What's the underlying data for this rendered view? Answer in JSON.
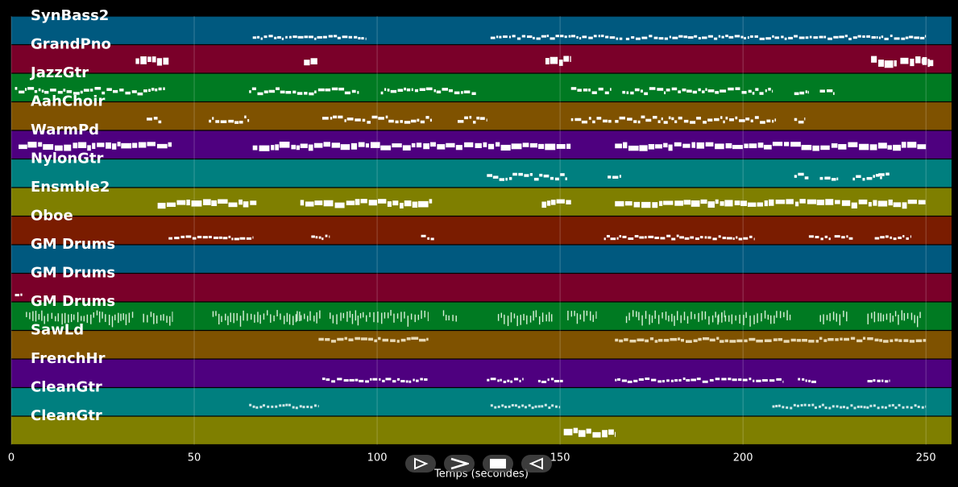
{
  "chart_data": {
    "type": "piano-roll",
    "xlabel": "Temps (secondes)",
    "xlim": [
      0,
      257
    ],
    "xticks": [
      0,
      50,
      100,
      150,
      200,
      250
    ],
    "grid": true,
    "tracks": [
      {
        "name": "SynBass2",
        "color": "#00597f",
        "notes": [
          [
            66,
            31
          ],
          [
            131,
            36
          ],
          [
            168,
            82
          ]
        ],
        "style": "thin"
      },
      {
        "name": "GrandPno",
        "color": "#7a0029",
        "notes": [
          [
            34,
            9
          ],
          [
            80,
            4
          ],
          [
            146,
            7
          ],
          [
            235,
            7
          ],
          [
            243,
            8
          ],
          [
            249,
            3
          ]
        ],
        "style": "block"
      },
      {
        "name": "JazzGtr",
        "color": "#007a22",
        "notes": [
          [
            1,
            41
          ],
          [
            65,
            30
          ],
          [
            101,
            26
          ],
          [
            153,
            11
          ],
          [
            167,
            41
          ],
          [
            214,
            4
          ],
          [
            221,
            4
          ]
        ],
        "style": "dash"
      },
      {
        "name": "AahChoir",
        "color": "#7f5200",
        "notes": [
          [
            37,
            4
          ],
          [
            54,
            11
          ],
          [
            85,
            30
          ],
          [
            122,
            8
          ],
          [
            153,
            11
          ],
          [
            165,
            44
          ],
          [
            214,
            3
          ]
        ],
        "style": "dash"
      },
      {
        "name": "WarmPd",
        "color": "#4e007f",
        "notes": [
          [
            2,
            42
          ],
          [
            66,
            87
          ],
          [
            165,
            85
          ]
        ],
        "style": "thick"
      },
      {
        "name": "NylonGtr",
        "color": "#007f7f",
        "notes": [
          [
            130,
            22
          ],
          [
            163,
            4
          ],
          [
            214,
            4
          ],
          [
            221,
            5
          ],
          [
            230,
            8
          ],
          [
            237,
            3
          ]
        ],
        "style": "dash"
      },
      {
        "name": "Ensmble2",
        "color": "#7f7f00",
        "notes": [
          [
            40,
            27
          ],
          [
            79,
            36
          ],
          [
            145,
            8
          ],
          [
            165,
            85
          ]
        ],
        "style": "thick"
      },
      {
        "name": "Oboe",
        "color": "#7a1c00",
        "notes": [
          [
            43,
            23
          ],
          [
            82,
            5
          ],
          [
            112,
            4
          ],
          [
            162,
            41
          ],
          [
            218,
            6
          ],
          [
            225,
            5
          ],
          [
            236,
            10
          ]
        ],
        "style": "thin"
      },
      {
        "name": "GM Drums",
        "color": "#00597f",
        "notes": [],
        "style": "thin"
      },
      {
        "name": "GM Drums",
        "color": "#7a0029",
        "notes": [
          [
            1,
            2
          ]
        ],
        "style": "thin"
      },
      {
        "name": "GM Drums",
        "color": "#007a22",
        "notes": [
          [
            4,
            30
          ],
          [
            36,
            8
          ],
          [
            55,
            24
          ],
          [
            78,
            7
          ],
          [
            87,
            27
          ],
          [
            118,
            4
          ],
          [
            133,
            15
          ],
          [
            152,
            8
          ],
          [
            168,
            27
          ],
          [
            193,
            20
          ],
          [
            221,
            8
          ],
          [
            234,
            15
          ]
        ],
        "style": "drum"
      },
      {
        "name": "SawLd",
        "color": "#7f5200",
        "notes": [
          [
            84,
            30
          ],
          [
            165,
            85
          ]
        ],
        "style": "beige"
      },
      {
        "name": "FrenchHr",
        "color": "#4e007f",
        "notes": [
          [
            85,
            29
          ],
          [
            130,
            10
          ],
          [
            144,
            7
          ],
          [
            165,
            46
          ],
          [
            215,
            5
          ],
          [
            234,
            6
          ]
        ],
        "style": "thin"
      },
      {
        "name": "CleanGtr",
        "color": "#007f7f",
        "notes": [
          [
            65,
            19
          ],
          [
            131,
            19
          ],
          [
            208,
            42
          ]
        ],
        "style": "dots"
      },
      {
        "name": "CleanGtr",
        "color": "#7f7f00",
        "notes": [
          [
            151,
            14
          ]
        ],
        "style": "block"
      }
    ]
  },
  "controls": {
    "items": [
      {
        "name": "play-icon",
        "label": "play"
      },
      {
        "name": "forward-icon",
        "label": "forward"
      },
      {
        "name": "stop-icon",
        "label": "stop"
      },
      {
        "name": "rewind-icon",
        "label": "rewind"
      }
    ]
  }
}
